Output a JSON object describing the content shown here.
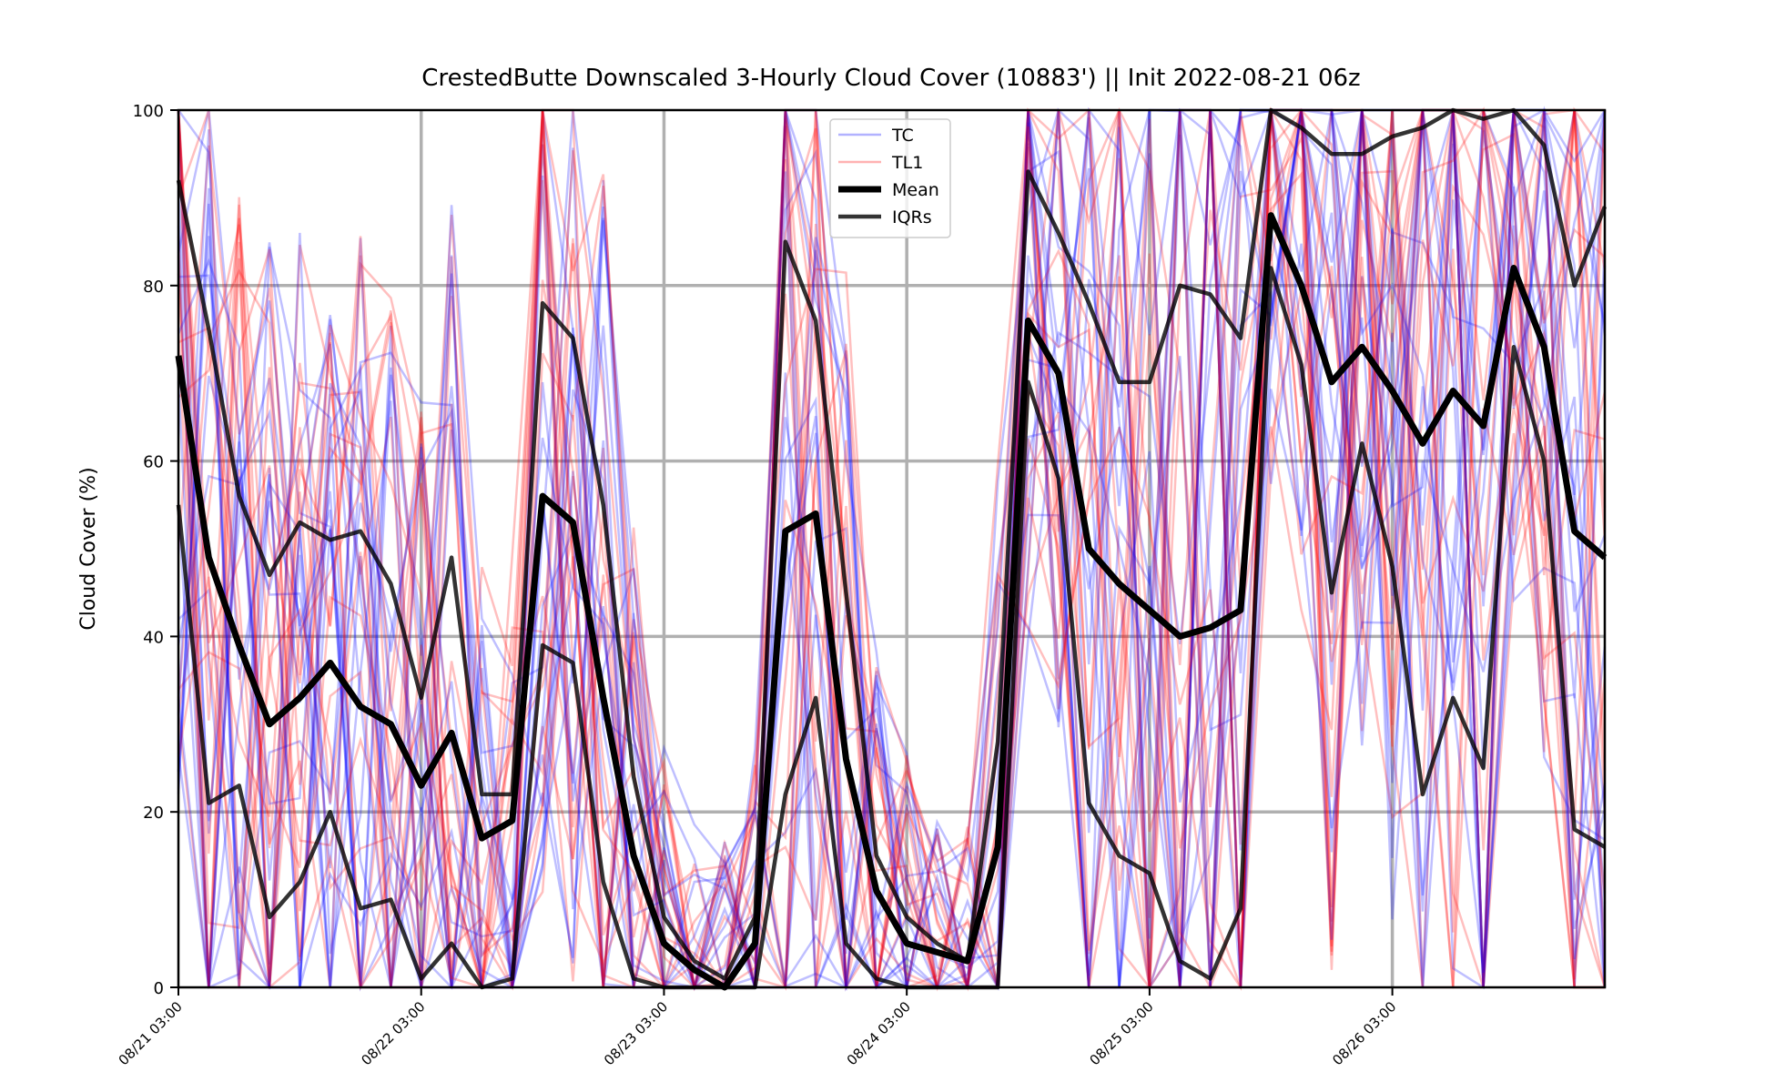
{
  "chart_data": {
    "type": "line",
    "title": "CrestedButte Downscaled 3-Hourly Cloud Cover (10883') || Init 2022-08-21 06z",
    "ylabel": "Cloud Cover (%)",
    "xlabel": "",
    "ylim": [
      0,
      100
    ],
    "yticks": [
      0,
      20,
      40,
      60,
      80,
      100
    ],
    "x_range_hours": [
      0,
      141
    ],
    "xtick_labels": [
      "08/21 03:00",
      "08/22 03:00",
      "08/23 03:00",
      "08/24 03:00",
      "08/25 03:00",
      "08/26 03:00"
    ],
    "xtick_hours": [
      0,
      24,
      48,
      72,
      96,
      120
    ],
    "x_step_hours": 3,
    "grid": true,
    "legend": {
      "placement": "top-center",
      "entries": [
        {
          "label": "TC",
          "color": "#0000ff"
        },
        {
          "label": "TL1",
          "color": "#ff0000"
        },
        {
          "label": "Mean",
          "color": "#000000"
        },
        {
          "label": "IQRs",
          "color": "#000000"
        }
      ]
    },
    "series": [
      {
        "name": "Mean",
        "color": "#000000",
        "values": [
          72,
          49,
          39,
          30,
          33,
          37,
          32,
          30,
          23,
          29,
          17,
          19,
          56,
          53,
          33,
          15,
          5,
          2,
          0,
          5,
          52,
          54,
          26,
          11,
          5,
          4,
          3,
          16,
          76,
          70,
          50,
          46,
          43,
          40,
          41,
          43,
          88,
          80,
          69,
          73,
          68,
          62,
          68,
          64,
          82,
          73,
          52,
          49
        ]
      },
      {
        "name": "IQRs",
        "label": "upper",
        "color": "#000000",
        "values": [
          92,
          75,
          56,
          47,
          53,
          51,
          52,
          46,
          33,
          49,
          22,
          22,
          78,
          74,
          55,
          24,
          8,
          3,
          1,
          8,
          85,
          76,
          45,
          15,
          8,
          5,
          3,
          28,
          93,
          86,
          78,
          69,
          69,
          80,
          79,
          74,
          100,
          98,
          95,
          95,
          97,
          98,
          100,
          99,
          100,
          96,
          80,
          89
        ]
      },
      {
        "name": "IQRs",
        "label": "lower",
        "color": "#000000",
        "values": [
          55,
          21,
          23,
          8,
          12,
          20,
          9,
          10,
          1,
          5,
          0,
          1,
          39,
          37,
          12,
          1,
          0,
          0,
          0,
          0,
          22,
          33,
          5,
          1,
          0,
          0,
          0,
          0,
          69,
          58,
          21,
          15,
          13,
          3,
          1,
          9,
          82,
          71,
          45,
          62,
          48,
          22,
          33,
          25,
          73,
          60,
          18,
          16
        ]
      }
    ]
  }
}
